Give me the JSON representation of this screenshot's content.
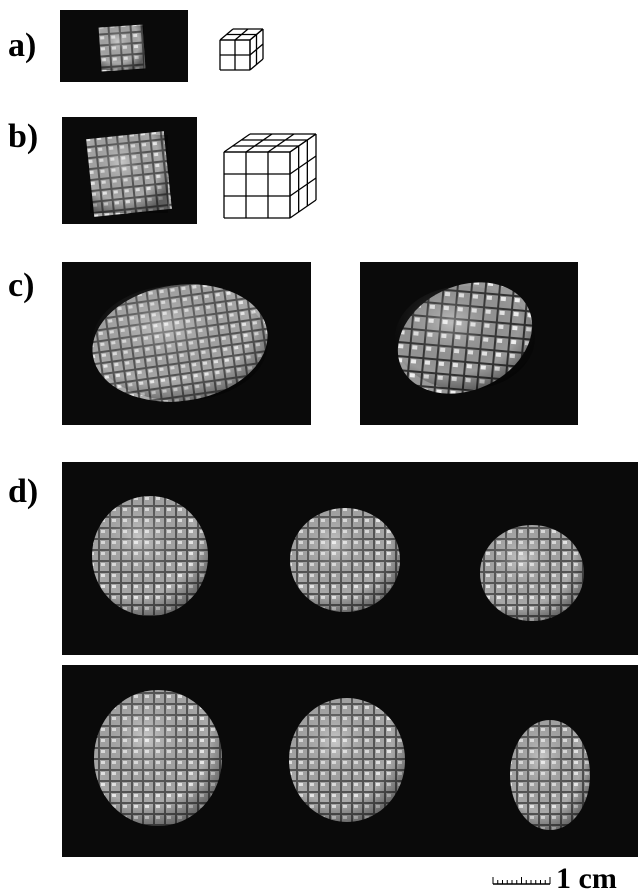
{
  "panels": [
    {
      "label": "a)"
    },
    {
      "label": "b)"
    },
    {
      "label": "c)"
    },
    {
      "label": "d)"
    }
  ],
  "scale_bar": {
    "label": "1 cm"
  }
}
